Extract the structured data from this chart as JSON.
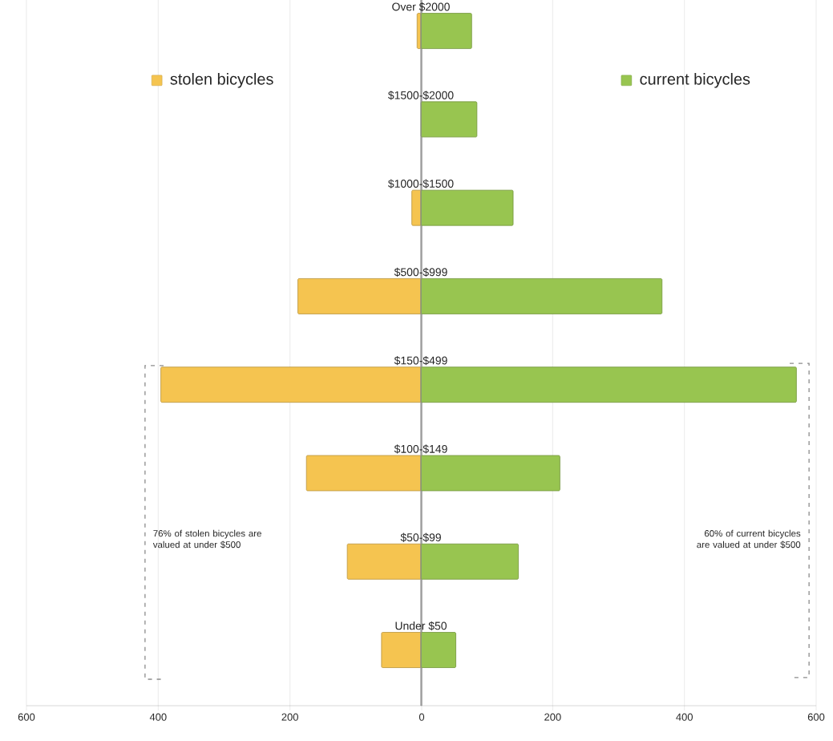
{
  "chart_data": [
    {
      "type": "bar",
      "orientation": "horizontal",
      "categories": [
        null,
        null,
        null,
        null,
        null,
        null,
        null,
        null
      ],
      "series": [
        {
          "name": "stolen bicycles",
          "color": "#f5c450",
          "values": [
            7,
            null,
            15,
            188,
            396,
            175,
            113,
            61
          ]
        }
      ],
      "xlim": [
        600,
        0
      ],
      "xticks": [
        600,
        400,
        200,
        0
      ],
      "grid": "x",
      "legend": "top",
      "annotations": [
        "76% of stolen bicycles are valued at under $500"
      ]
    },
    {
      "type": "bar",
      "orientation": "horizontal",
      "categories": [
        "Over $2000",
        "$1500-$2000",
        "$1000-$1500",
        "$500-$999",
        "$150-$499",
        "$100-$149",
        "$50-$99",
        "Under $50"
      ],
      "series": [
        {
          "name": "current bicycles",
          "color": "#98c550",
          "values": [
            77,
            85,
            140,
            366,
            570,
            211,
            148,
            53
          ]
        }
      ],
      "xlim": [
        0,
        600
      ],
      "xticks": [
        200,
        400,
        600
      ],
      "grid": "x",
      "legend": "top",
      "annotations": [
        "60% of current bicycles are valued at under $500"
      ]
    }
  ]
}
